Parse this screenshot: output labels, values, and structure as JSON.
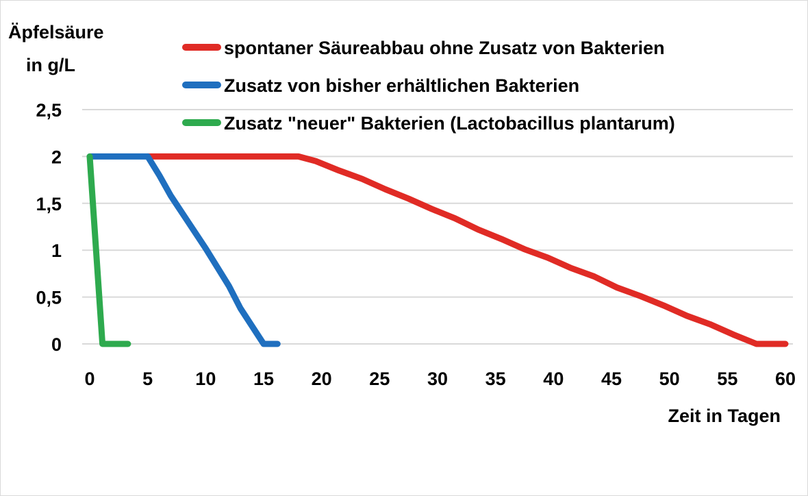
{
  "chart_data": {
    "type": "line",
    "ylabel": [
      "Äpfelsäure",
      "in g/L"
    ],
    "xlabel": "Zeit in Tagen",
    "xlim": [
      0,
      60
    ],
    "ylim": [
      0,
      2.5
    ],
    "x_ticks": [
      0,
      5,
      10,
      15,
      20,
      25,
      30,
      35,
      40,
      45,
      50,
      55,
      60
    ],
    "y_ticks": [
      0,
      0.5,
      1,
      1.5,
      2,
      2.5
    ],
    "x_tick_labels": [
      "0",
      "5",
      "10",
      "15",
      "20",
      "25",
      "30",
      "35",
      "40",
      "45",
      "50",
      "55",
      "60"
    ],
    "y_tick_labels": [
      "0",
      "0,5",
      "1",
      "1,5",
      "2",
      "2,5"
    ],
    "grid": "horizontal",
    "legend_position": "top-right",
    "series": [
      {
        "name": "spontaner Säureabbau ohne Zusatz von Bakterien",
        "color": "#e02b25",
        "points": [
          [
            5,
            2
          ],
          [
            18,
            2
          ],
          [
            19.5,
            1.95
          ],
          [
            21.5,
            1.85
          ],
          [
            23.5,
            1.76
          ],
          [
            25.5,
            1.65
          ],
          [
            27.5,
            1.55
          ],
          [
            29.5,
            1.44
          ],
          [
            31.5,
            1.34
          ],
          [
            33.5,
            1.22
          ],
          [
            35.5,
            1.12
          ],
          [
            37.5,
            1.01
          ],
          [
            39.5,
            0.92
          ],
          [
            41.5,
            0.81
          ],
          [
            43.5,
            0.72
          ],
          [
            45.5,
            0.6
          ],
          [
            47.5,
            0.51
          ],
          [
            49.5,
            0.41
          ],
          [
            51.5,
            0.3
          ],
          [
            53.5,
            0.21
          ],
          [
            55.5,
            0.1
          ],
          [
            57.5,
            0
          ],
          [
            60,
            0
          ]
        ]
      },
      {
        "name": "Zusatz von bisher erhältlichen Bakterien",
        "color": "#1f6fbf",
        "points": [
          [
            0,
            2
          ],
          [
            5,
            2
          ],
          [
            6,
            1.8
          ],
          [
            7,
            1.58
          ],
          [
            8.5,
            1.3
          ],
          [
            10,
            1.02
          ],
          [
            12,
            0.62
          ],
          [
            13,
            0.38
          ],
          [
            15,
            0
          ],
          [
            16.2,
            0
          ]
        ]
      },
      {
        "name": "Zusatz \"neuer\" Bakterien (Lactobacillus plantarum)",
        "color": "#2eaa4e",
        "points": [
          [
            0,
            2
          ],
          [
            1.1,
            0
          ],
          [
            3.3,
            0
          ]
        ]
      }
    ]
  }
}
